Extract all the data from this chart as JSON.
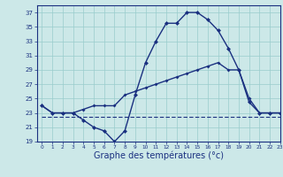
{
  "xlabel": "Graphe des températures (°c)",
  "background_color": "#cce8e8",
  "line_color": "#1a3080",
  "grid_color": "#99cccc",
  "series1": {
    "x": [
      0,
      1,
      2,
      3,
      4,
      5,
      6,
      7,
      8,
      9,
      10,
      11,
      12,
      13,
      14,
      15,
      16,
      17,
      18,
      19,
      20,
      21,
      22,
      23
    ],
    "y": [
      24,
      23,
      23,
      23,
      22,
      21,
      20.5,
      19,
      20.5,
      25.5,
      30,
      33,
      35.5,
      35.5,
      37,
      37,
      36,
      34.5,
      32,
      29,
      24.5,
      23,
      23,
      23
    ]
  },
  "series2": {
    "x": [
      0,
      1,
      2,
      3,
      4,
      5,
      6,
      7,
      8,
      9,
      10,
      11,
      12,
      13,
      14,
      15,
      16,
      17,
      18,
      19,
      20,
      21,
      22,
      23
    ],
    "y": [
      22.5,
      22.5,
      22.5,
      22.5,
      22.5,
      22.5,
      22.5,
      22.5,
      22.5,
      22.5,
      22.5,
      22.5,
      22.5,
      22.5,
      22.5,
      22.5,
      22.5,
      22.5,
      22.5,
      22.5,
      22.5,
      22.5,
      22.5,
      22.5
    ]
  },
  "series3": {
    "x": [
      0,
      1,
      2,
      3,
      4,
      5,
      6,
      7,
      8,
      9,
      10,
      11,
      12,
      13,
      14,
      15,
      16,
      17,
      18,
      19,
      20,
      21,
      22,
      23
    ],
    "y": [
      24,
      23,
      23,
      23,
      23.5,
      24,
      24,
      24,
      25.5,
      26,
      26.5,
      27,
      27.5,
      28,
      28.5,
      29,
      29.5,
      30,
      29,
      29,
      25,
      23,
      23,
      23
    ]
  },
  "ylim": [
    19,
    38
  ],
  "xlim": [
    -0.5,
    23
  ],
  "yticks": [
    19,
    21,
    23,
    25,
    27,
    29,
    31,
    33,
    35,
    37
  ],
  "xticks": [
    0,
    1,
    2,
    3,
    4,
    5,
    6,
    7,
    8,
    9,
    10,
    11,
    12,
    13,
    14,
    15,
    16,
    17,
    18,
    19,
    20,
    21,
    22,
    23
  ],
  "xlabel_fontsize": 7,
  "tick_fontsize": 5,
  "line_width": 1.0
}
